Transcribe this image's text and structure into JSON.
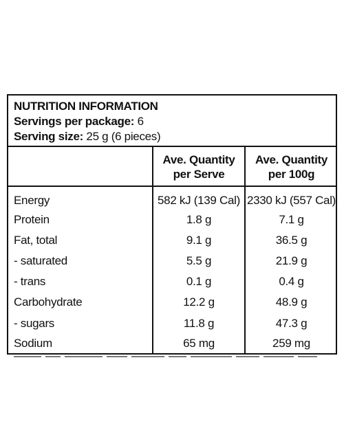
{
  "panel": {
    "title": "NUTRITION INFORMATION",
    "servings_label": "Servings per package:",
    "servings_value": "6",
    "size_label": "Serving size:",
    "size_value": "25 g (6 pieces)"
  },
  "columns": {
    "per_serve": [
      "Ave. Quantity",
      "per Serve"
    ],
    "per_100g": [
      "Ave. Quantity",
      "per 100g"
    ]
  },
  "rows": [
    {
      "name": "Energy",
      "per_serve": "582 kJ (139 Cal)",
      "per_100g": "2330 kJ (557 Cal)"
    },
    {
      "name": "Protein",
      "per_serve": "1.8 g",
      "per_100g": "7.1 g"
    },
    {
      "name": "Fat, total",
      "per_serve": "9.1 g",
      "per_100g": "36.5 g"
    },
    {
      "name": "- saturated",
      "per_serve": "5.5 g",
      "per_100g": "21.9 g"
    },
    {
      "name": "- trans",
      "per_serve": "0.1 g",
      "per_100g": "0.4 g"
    },
    {
      "name": "Carbohydrate",
      "per_serve": "12.2 g",
      "per_100g": "48.9 g"
    },
    {
      "name": "- sugars",
      "per_serve": "11.8 g",
      "per_100g": "47.3 g"
    },
    {
      "name": "Sodium",
      "per_serve": "65 mg",
      "per_100g": "259 mg"
    }
  ]
}
